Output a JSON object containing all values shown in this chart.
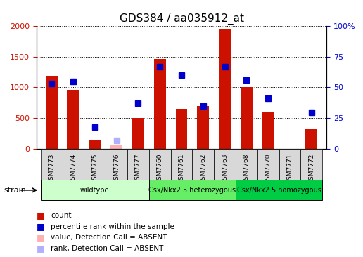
{
  "title": "GDS384 / aa035912_at",
  "samples": [
    "GSM7773",
    "GSM7774",
    "GSM7775",
    "GSM7776",
    "GSM7777",
    "GSM7760",
    "GSM7761",
    "GSM7762",
    "GSM7763",
    "GSM7768",
    "GSM7770",
    "GSM7771",
    "GSM7772"
  ],
  "bar_values": [
    1190,
    960,
    150,
    null,
    500,
    1460,
    650,
    700,
    1940,
    1010,
    600,
    null,
    330
  ],
  "bar_absent": [
    null,
    null,
    null,
    60,
    null,
    null,
    null,
    null,
    null,
    null,
    null,
    null,
    null
  ],
  "rank_values": [
    53,
    55,
    18,
    null,
    37,
    67,
    60,
    35,
    67,
    56,
    41,
    null,
    30
  ],
  "rank_absent": [
    null,
    null,
    null,
    7,
    null,
    null,
    null,
    null,
    null,
    null,
    null,
    null,
    null
  ],
  "bar_color": "#cc1100",
  "bar_absent_color": "#ffb0b0",
  "rank_color": "#0000cc",
  "rank_absent_color": "#b0b0ff",
  "ylim_left": [
    0,
    2000
  ],
  "ylim_right": [
    0,
    100
  ],
  "yticks_left": [
    0,
    500,
    1000,
    1500,
    2000
  ],
  "yticks_right": [
    0,
    25,
    50,
    75,
    100
  ],
  "ytick_labels_right": [
    "0",
    "25",
    "50",
    "75",
    "100%"
  ],
  "groups": [
    {
      "label": "wildtype",
      "start": 0,
      "end": 5,
      "color": "#ccffcc"
    },
    {
      "label": "Csx/Nkx2.5 heterozygous",
      "start": 5,
      "end": 9,
      "color": "#66ee66"
    },
    {
      "label": "Csx/Nkx2.5 homozygous",
      "start": 9,
      "end": 13,
      "color": "#00cc44"
    }
  ],
  "legend_items": [
    {
      "label": "count",
      "color": "#cc1100"
    },
    {
      "label": "percentile rank within the sample",
      "color": "#0000cc"
    },
    {
      "label": "value, Detection Call = ABSENT",
      "color": "#ffb0b0"
    },
    {
      "label": "rank, Detection Call = ABSENT",
      "color": "#b0b0ff"
    }
  ],
  "bar_width": 0.55,
  "marker_size": 6
}
